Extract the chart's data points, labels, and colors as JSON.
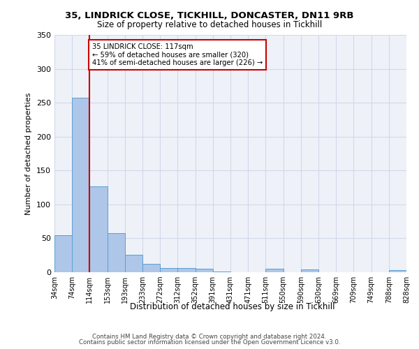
{
  "title_line1": "35, LINDRICK CLOSE, TICKHILL, DONCASTER, DN11 9RB",
  "title_line2": "Size of property relative to detached houses in Tickhill",
  "xlabel": "Distribution of detached houses by size in Tickhill",
  "ylabel": "Number of detached properties",
  "footer_line1": "Contains HM Land Registry data © Crown copyright and database right 2024.",
  "footer_line2": "Contains public sector information licensed under the Open Government Licence v3.0.",
  "annotation_line1": "35 LINDRICK CLOSE: 117sqm",
  "annotation_line2": "← 59% of detached houses are smaller (320)",
  "annotation_line3": "41% of semi-detached houses are larger (226) →",
  "bar_labels": [
    "34sqm",
    "74sqm",
    "114sqm",
    "153sqm",
    "193sqm",
    "233sqm",
    "272sqm",
    "312sqm",
    "352sqm",
    "391sqm",
    "431sqm",
    "471sqm",
    "511sqm",
    "550sqm",
    "590sqm",
    "630sqm",
    "669sqm",
    "709sqm",
    "749sqm",
    "788sqm"
  ],
  "last_tick_label": "828sqm",
  "bar_heights": [
    55,
    257,
    127,
    58,
    26,
    12,
    6,
    6,
    5,
    1,
    0,
    0,
    5,
    0,
    4,
    0,
    0,
    0,
    0,
    3
  ],
  "bar_color": "#aec6e8",
  "bar_edge_color": "#5a9fd4",
  "vline_color": "#cc0000",
  "vline_position": 1.5,
  "annotation_box_color": "#cc0000",
  "grid_color": "#d0d8e8",
  "bg_color": "#eef2f8",
  "ylim": [
    0,
    350
  ],
  "yticks": [
    0,
    50,
    100,
    150,
    200,
    250,
    300,
    350
  ]
}
